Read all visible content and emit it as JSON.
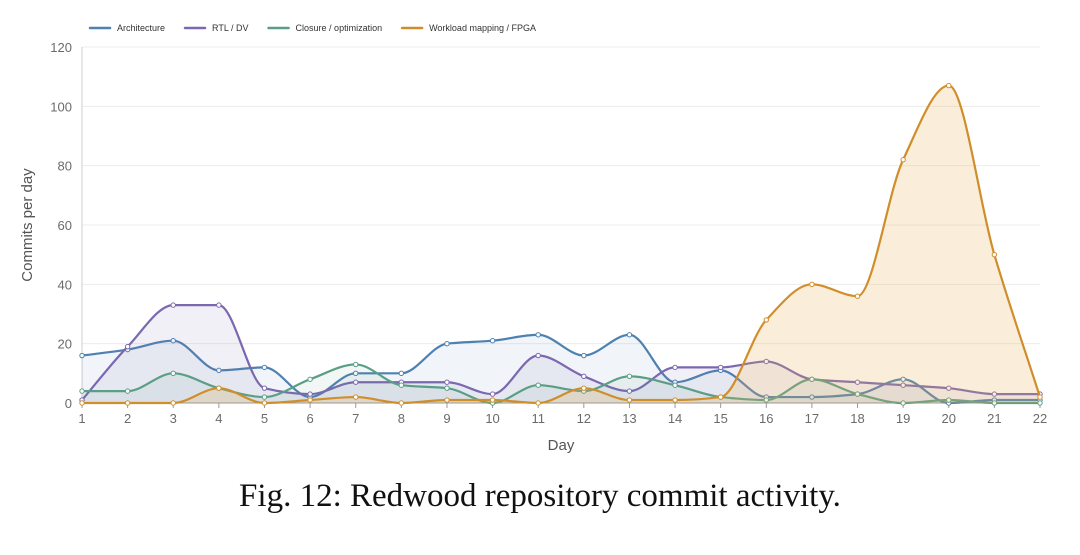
{
  "caption": "Fig. 12: Redwood repository commit activity.",
  "chart_data": {
    "type": "area",
    "title": "",
    "xlabel": "Day",
    "ylabel": "Commits per day",
    "x": [
      1,
      2,
      3,
      4,
      5,
      6,
      7,
      8,
      9,
      10,
      11,
      12,
      13,
      14,
      15,
      16,
      17,
      18,
      19,
      20,
      21,
      22
    ],
    "xlim": [
      1,
      22
    ],
    "ylim": [
      0,
      120
    ],
    "yticks": [
      0,
      20,
      40,
      60,
      80,
      100,
      120
    ],
    "grid": "horizontal",
    "legend_position": "top-left",
    "series": [
      {
        "name": "Architecture",
        "color": "#4e81b0",
        "fill": "rgba(78,129,176,0.08)",
        "values": [
          16,
          18,
          21,
          11,
          12,
          2,
          10,
          10,
          20,
          21,
          23,
          16,
          23,
          7,
          11,
          2,
          2,
          3,
          8,
          0,
          1,
          1
        ]
      },
      {
        "name": "RTL / DV",
        "color": "#7b68b0",
        "fill": "rgba(123,104,176,0.10)",
        "values": [
          1,
          19,
          33,
          33,
          5,
          3,
          7,
          7,
          7,
          3,
          16,
          9,
          4,
          12,
          12,
          14,
          8,
          7,
          6,
          5,
          3,
          3
        ]
      },
      {
        "name": "Closure / optimization",
        "color": "#5a9e84",
        "fill": "rgba(90,158,132,0.08)",
        "values": [
          4,
          4,
          10,
          5,
          2,
          8,
          13,
          6,
          5,
          0,
          6,
          4,
          9,
          6,
          2,
          1,
          8,
          3,
          0,
          1,
          0,
          0
        ]
      },
      {
        "name": "Workload mapping / FPGA",
        "color": "#d08e2a",
        "fill": "rgba(232,178,90,0.22)",
        "values": [
          0,
          0,
          0,
          5,
          0,
          1,
          2,
          0,
          1,
          1,
          0,
          5,
          1,
          1,
          2,
          28,
          40,
          36,
          82,
          107,
          50,
          2
        ]
      }
    ]
  }
}
